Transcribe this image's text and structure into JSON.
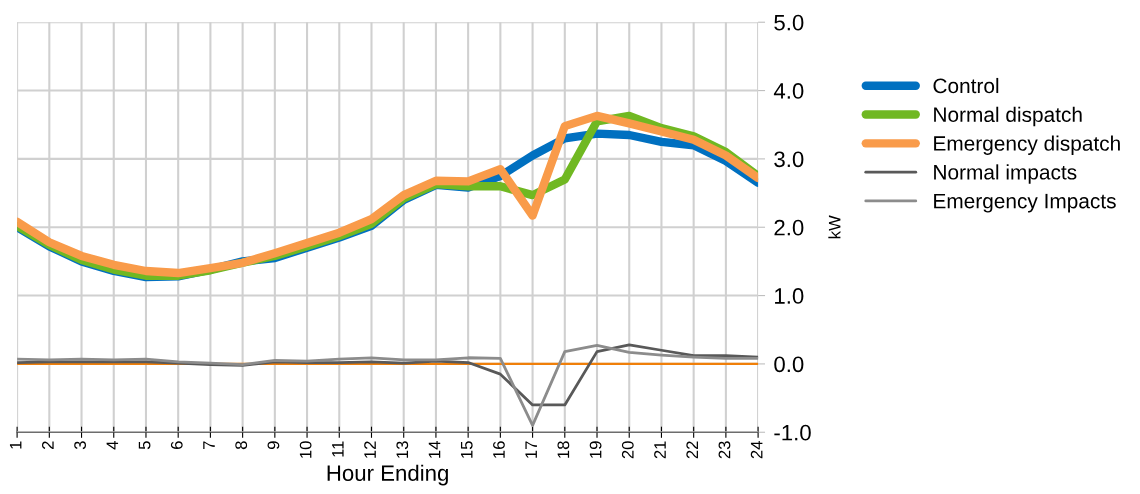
{
  "chart_data": {
    "type": "line",
    "xlabel": "Hour Ending",
    "ylabel": "kW",
    "categories": [
      "1",
      "2",
      "3",
      "4",
      "5",
      "6",
      "7",
      "8",
      "9",
      "10",
      "11",
      "12",
      "13",
      "14",
      "15",
      "16",
      "17",
      "18",
      "19",
      "20",
      "21",
      "22",
      "23",
      "24"
    ],
    "ylim": [
      -1.0,
      5.0
    ],
    "yticks": [
      {
        "value": -1,
        "label": "-1.0"
      },
      {
        "value": 0,
        "label": "0.0"
      },
      {
        "value": 1,
        "label": "1.0"
      },
      {
        "value": 2,
        "label": "2.0"
      },
      {
        "value": 3,
        "label": "3.0"
      },
      {
        "value": 4,
        "label": "4.0"
      },
      {
        "value": 5,
        "label": "5.0"
      }
    ],
    "grid": true,
    "legend": "right",
    "line_style": "solid",
    "series": [
      {
        "name": "Control",
        "color": "#0070c0",
        "values": [
          2.0,
          1.72,
          1.5,
          1.36,
          1.27,
          1.28,
          1.38,
          1.5,
          1.55,
          1.7,
          1.85,
          2.02,
          2.4,
          2.62,
          2.58,
          2.75,
          3.05,
          3.3,
          3.37,
          3.35,
          3.25,
          3.2,
          2.97,
          2.65
        ]
      },
      {
        "name": "Normal dispatch",
        "color": "#70b822",
        "values": [
          2.02,
          1.74,
          1.52,
          1.38,
          1.29,
          1.29,
          1.37,
          1.48,
          1.58,
          1.72,
          1.87,
          2.05,
          2.42,
          2.63,
          2.6,
          2.6,
          2.47,
          2.7,
          3.55,
          3.63,
          3.45,
          3.33,
          3.1,
          2.75
        ]
      },
      {
        "name": "Emergency dispatch",
        "color": "#f99b4a",
        "values": [
          2.08,
          1.78,
          1.58,
          1.45,
          1.36,
          1.33,
          1.4,
          1.48,
          1.62,
          1.77,
          1.92,
          2.12,
          2.47,
          2.68,
          2.67,
          2.85,
          2.17,
          3.48,
          3.63,
          3.52,
          3.4,
          3.28,
          3.05,
          2.72
        ]
      },
      {
        "name": "Normal impacts",
        "color": "#595959",
        "values": [
          0.02,
          0.03,
          0.03,
          0.03,
          0.03,
          0.01,
          -0.01,
          -0.02,
          0.03,
          0.02,
          0.02,
          0.03,
          0.01,
          0.04,
          0.02,
          -0.15,
          -0.6,
          -0.6,
          0.18,
          0.28,
          0.2,
          0.12,
          0.12,
          0.1
        ]
      },
      {
        "name": "Emergency Impacts",
        "color": "#8c8c8c",
        "values": [
          0.07,
          0.06,
          0.07,
          0.06,
          0.07,
          0.03,
          0.01,
          -0.01,
          0.05,
          0.04,
          0.07,
          0.09,
          0.06,
          0.06,
          0.09,
          0.08,
          -0.9,
          0.18,
          0.27,
          0.17,
          0.13,
          0.1,
          0.08,
          0.08
        ]
      }
    ],
    "ref_lines": [
      {
        "axis": "y",
        "value": 0,
        "label": null,
        "color": "#f07f09"
      }
    ]
  }
}
